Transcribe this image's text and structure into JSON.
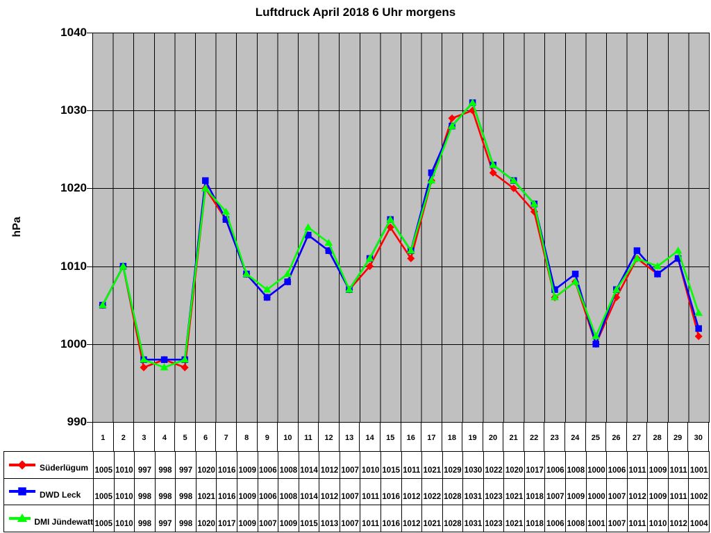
{
  "chart_data": {
    "type": "line",
    "title": "Luftdruck April 2018 6 Uhr morgens",
    "ylabel": "hPa",
    "ylim": [
      990,
      1040
    ],
    "ytick_step": 10,
    "grid": true,
    "plot_bg_color": "#c0c0c0",
    "grid_color": "#000000",
    "legend_position": "table-left",
    "categories": [
      "1",
      "2",
      "3",
      "4",
      "5",
      "6",
      "7",
      "8",
      "9",
      "10",
      "11",
      "12",
      "13",
      "14",
      "15",
      "16",
      "17",
      "18",
      "19",
      "20",
      "21",
      "22",
      "23",
      "24",
      "25",
      "26",
      "27",
      "28",
      "29",
      "30"
    ],
    "series": [
      {
        "name": "Süderlügum",
        "color": "#ff0000",
        "marker": "diamond",
        "values": [
          1005,
          1010,
          997,
          998,
          997,
          1020,
          1016,
          1009,
          1006,
          1008,
          1014,
          1012,
          1007,
          1010,
          1015,
          1011,
          1021,
          1029,
          1030,
          1022,
          1020,
          1017,
          1006,
          1008,
          1000,
          1006,
          1011,
          1009,
          1011,
          1001
        ]
      },
      {
        "name": "DWD Leck",
        "color": "#0000ff",
        "marker": "square",
        "values": [
          1005,
          1010,
          998,
          998,
          998,
          1021,
          1016,
          1009,
          1006,
          1008,
          1014,
          1012,
          1007,
          1011,
          1016,
          1012,
          1022,
          1028,
          1031,
          1023,
          1021,
          1018,
          1007,
          1009,
          1000,
          1007,
          1012,
          1009,
          1011,
          1002
        ]
      },
      {
        "name": "DMI Jündewatt",
        "color": "#00ff00",
        "marker": "triangle",
        "values": [
          1005,
          1010,
          998,
          997,
          998,
          1020,
          1017,
          1009,
          1007,
          1009,
          1015,
          1013,
          1007,
          1011,
          1016,
          1012,
          1021,
          1028,
          1031,
          1023,
          1021,
          1018,
          1006,
          1008,
          1001,
          1007,
          1011,
          1010,
          1012,
          1004
        ]
      }
    ]
  }
}
